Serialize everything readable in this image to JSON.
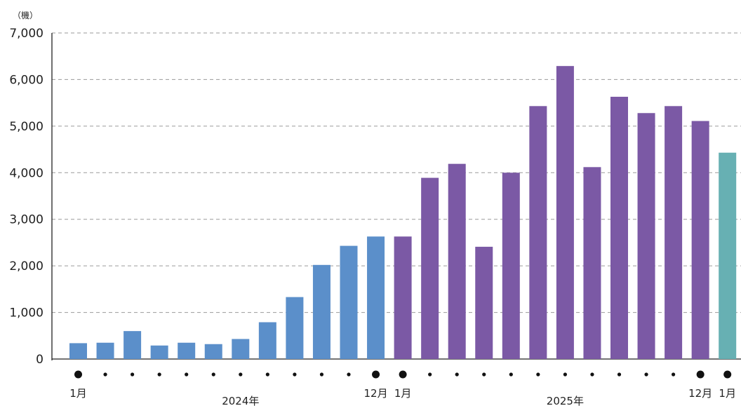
{
  "chart_data": {
    "type": "bar",
    "unit_label": "（機）",
    "ylim": [
      0,
      7000
    ],
    "yticks": [
      "0",
      "1,000",
      "2,000",
      "3,000",
      "4,000",
      "5,000",
      "6,000",
      "7,000"
    ],
    "grid": true,
    "values": [
      340,
      350,
      600,
      290,
      350,
      320,
      430,
      790,
      1330,
      2020,
      2430,
      2630,
      2630,
      3890,
      4190,
      2410,
      4000,
      5430,
      6290,
      4120,
      5630,
      5280,
      5430,
      5110,
      4430
    ],
    "groups": [
      1,
      1,
      1,
      1,
      1,
      1,
      1,
      1,
      1,
      1,
      1,
      1,
      2,
      2,
      2,
      2,
      2,
      2,
      2,
      2,
      2,
      2,
      2,
      2,
      3
    ],
    "colors": {
      "1": "#5b8fca",
      "2": "#7b59a5",
      "3": "#67b0b3"
    },
    "major_markers": [
      0,
      11,
      12,
      23,
      24
    ],
    "x_labels": [
      {
        "index": 0,
        "text": "1月"
      },
      {
        "index": 11,
        "text": "12月"
      },
      {
        "index": 12,
        "text": "1月"
      },
      {
        "index": 23,
        "text": "12月"
      },
      {
        "index": 24,
        "text": "1月"
      }
    ],
    "year_labels": [
      {
        "index": 6,
        "text": "2024年"
      },
      {
        "index": 18,
        "text": "2025年"
      }
    ]
  }
}
